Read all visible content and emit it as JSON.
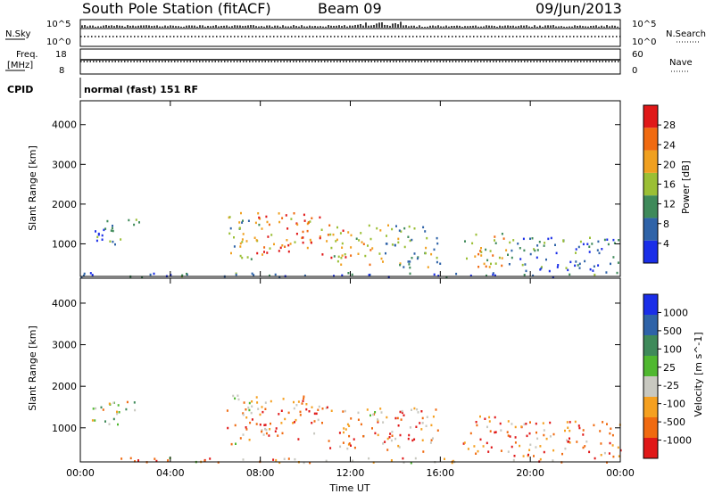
{
  "header": {
    "station": "South Pole Station (fitACF)",
    "beam": "Beam 09",
    "date": "09/Jun/2013"
  },
  "strips": {
    "nsky_label": "N.Sky",
    "nsky_top": "10^5",
    "nsky_bottom": "10^0",
    "nsearch_label": "N.Search",
    "nsearch_top": "10^5",
    "nsearch_bottom": "10^0",
    "freq_label": "Freq.",
    "freq_unit": "[MHz]",
    "freq_top": "18",
    "freq_bottom": "8",
    "nave_label": "Nave",
    "nave_top": "60",
    "nave_bottom": "0",
    "cpid_label": "CPID",
    "cpid_value": "normal (fast) 151 RF"
  },
  "colors": {
    "power_scale": [
      "#1a2ee8",
      "#2f63a8",
      "#3f8a5a",
      "#9bbf35",
      "#f0a020",
      "#f06a10",
      "#e01818"
    ],
    "velocity_scale": [
      "#e01818",
      "#f06a10",
      "#f5a020",
      "#c8c8c0",
      "#50b830",
      "#3f8a5a",
      "#2f63a8",
      "#1a2ee8"
    ]
  },
  "chart_data": [
    {
      "type": "heatmap",
      "name": "power",
      "ylabel": "Slant Range [km]",
      "xlabel": "",
      "x_ticks": [
        "00:00",
        "04:00",
        "08:00",
        "12:00",
        "16:00",
        "20:00",
        "00:00"
      ],
      "y_ticks": [
        "1000",
        "2000",
        "3000",
        "4000"
      ],
      "colorbar_label": "Power [dB]",
      "colorbar_ticks": [
        "4",
        "8",
        "12",
        "16",
        "20",
        "24",
        "28"
      ],
      "scatter_regions": [
        {
          "t0": 0.3,
          "t1": 1.8,
          "r0": 1000,
          "r1": 1700,
          "level": 0.25
        },
        {
          "t0": 2.0,
          "t1": 2.6,
          "r0": 1400,
          "r1": 1800,
          "level": 0.35
        },
        {
          "t0": 6.5,
          "t1": 8.0,
          "r0": 600,
          "r1": 1800,
          "level": 0.45
        },
        {
          "t0": 7.8,
          "t1": 11.0,
          "r0": 700,
          "r1": 1800,
          "level": 0.8
        },
        {
          "t0": 11.0,
          "t1": 13.5,
          "r0": 500,
          "r1": 1500,
          "level": 0.65
        },
        {
          "t0": 13.5,
          "t1": 16.0,
          "r0": 400,
          "r1": 1500,
          "level": 0.4
        },
        {
          "t0": 17.0,
          "t1": 19.0,
          "r0": 400,
          "r1": 1300,
          "level": 0.55
        },
        {
          "t0": 19.0,
          "t1": 24.0,
          "r0": 300,
          "r1": 1200,
          "level": 0.25
        },
        {
          "t0": 0.0,
          "t1": 24.0,
          "r0": 180,
          "r1": 300,
          "level": 0.2
        }
      ]
    },
    {
      "type": "heatmap",
      "name": "velocity",
      "ylabel": "Slant Range [km]",
      "xlabel": "Time UT",
      "x_ticks": [
        "00:00",
        "04:00",
        "08:00",
        "12:00",
        "16:00",
        "20:00",
        "00:00"
      ],
      "y_ticks": [
        "1000",
        "2000",
        "3000",
        "4000"
      ],
      "colorbar_label": "Velocity [m s^-1]",
      "colorbar_ticks": [
        "-1000",
        "-500",
        "-100",
        "-25",
        "25",
        "100",
        "500",
        "1000"
      ],
      "scatter_regions": [
        {
          "t0": 0.3,
          "t1": 1.8,
          "r0": 1000,
          "r1": 1700,
          "level": 0.45
        },
        {
          "t0": 2.0,
          "t1": 2.6,
          "r0": 1400,
          "r1": 1800,
          "level": 0.45
        },
        {
          "t0": 6.5,
          "t1": 8.0,
          "r0": 600,
          "r1": 1800,
          "level": 0.35
        },
        {
          "t0": 7.8,
          "t1": 11.0,
          "r0": 700,
          "r1": 1800,
          "level": 0.2
        },
        {
          "t0": 11.0,
          "t1": 13.5,
          "r0": 500,
          "r1": 1500,
          "level": 0.3
        },
        {
          "t0": 13.5,
          "t1": 16.0,
          "r0": 400,
          "r1": 1500,
          "level": 0.25
        },
        {
          "t0": 17.0,
          "t1": 19.0,
          "r0": 400,
          "r1": 1300,
          "level": 0.15
        },
        {
          "t0": 19.0,
          "t1": 24.0,
          "r0": 300,
          "r1": 1200,
          "level": 0.2
        },
        {
          "t0": 0.0,
          "t1": 24.0,
          "r0": 180,
          "r1": 300,
          "level": 0.3
        }
      ]
    }
  ]
}
